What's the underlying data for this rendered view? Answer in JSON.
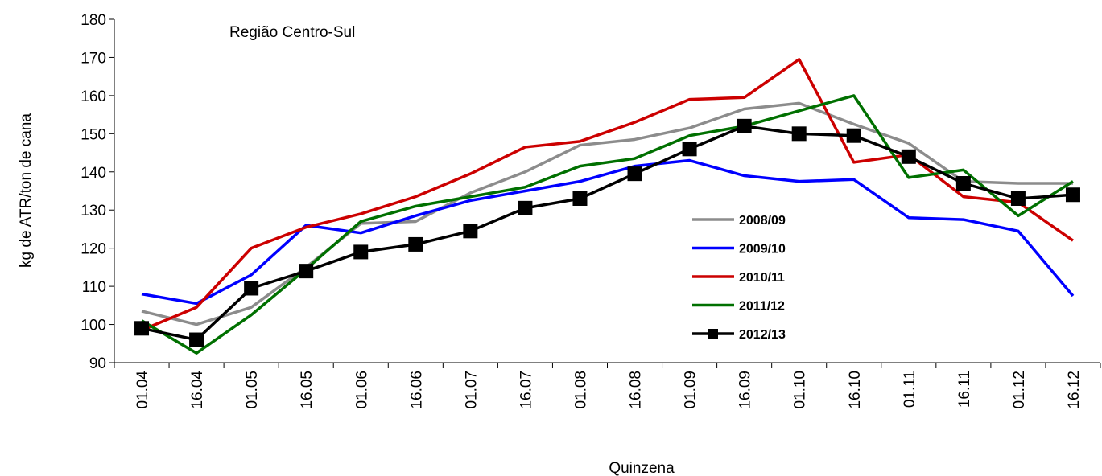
{
  "chart_data": {
    "type": "line",
    "title": "Região Centro-Sul",
    "x_label": "Quinzena",
    "y_label": "kg de ATR/ton de cana",
    "categories": [
      "01.04",
      "16.04",
      "01.05",
      "16.05",
      "01.06",
      "16.06",
      "01.07",
      "16.07",
      "01.08",
      "16.08",
      "01.09",
      "16.09",
      "01.10",
      "16.10",
      "01.11",
      "16.11",
      "01.12",
      "16.12"
    ],
    "ylim": [
      90,
      180
    ],
    "yticks": [
      90,
      100,
      110,
      120,
      130,
      140,
      150,
      160,
      170,
      180
    ],
    "legend": "right",
    "series": [
      {
        "name": "2008/09",
        "color": "#8c8c8c",
        "values": [
          103.5,
          100,
          104.5,
          115,
          126.5,
          127,
          134.5,
          140,
          147,
          148.5,
          151.5,
          156.5,
          158,
          152.5,
          147.5,
          137.5,
          137,
          137
        ]
      },
      {
        "name": "2009/10",
        "color": "#0000ff",
        "values": [
          108,
          105.5,
          113,
          126,
          124,
          128.5,
          132.5,
          135,
          137.5,
          141.5,
          143,
          139,
          137.5,
          138,
          128,
          127.5,
          124.5,
          107.5
        ]
      },
      {
        "name": "2010/11",
        "color": "#cc0000",
        "values": [
          98.5,
          104.5,
          120,
          125.5,
          129,
          133.5,
          139.5,
          146.5,
          148,
          153,
          159,
          159.5,
          169.5,
          142.5,
          144.5,
          133.5,
          132,
          122
        ]
      },
      {
        "name": "2011/12",
        "color": "#007000",
        "values": [
          101,
          92.5,
          102.5,
          114.5,
          127,
          131,
          133.5,
          136,
          141.5,
          143.5,
          149.5,
          152,
          156,
          160,
          138.5,
          140.5,
          128.5,
          137.5
        ]
      },
      {
        "name": "2012/13",
        "color": "#000000",
        "marker": "square",
        "values": [
          99,
          96,
          109.5,
          114,
          119,
          121,
          124.5,
          130.5,
          133,
          139.5,
          146,
          152,
          150,
          149.5,
          144,
          137,
          133,
          134
        ]
      }
    ]
  }
}
